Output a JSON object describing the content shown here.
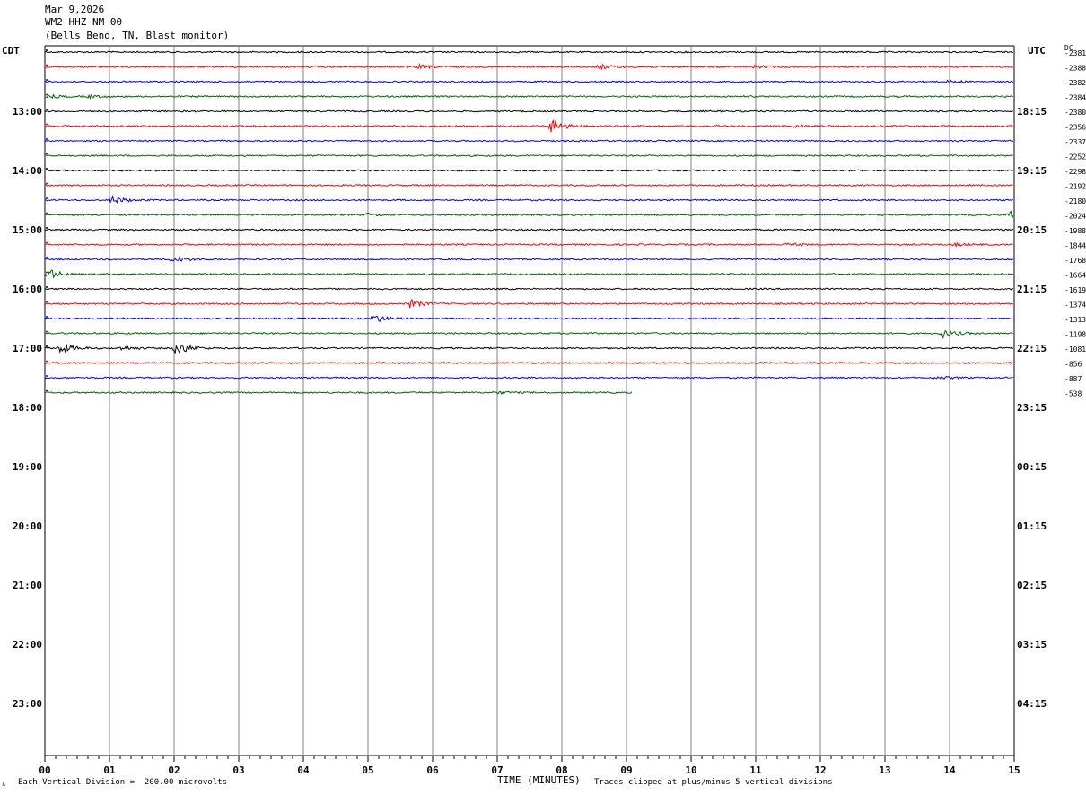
{
  "header": {
    "date": "Mar 9,2026",
    "station": "WM2 HHZ NM 00",
    "location": "(Bells Bend, TN, Blast monitor)"
  },
  "left_tz": "CDT",
  "right_tz": "UTC",
  "dc_label": "DC",
  "footer": {
    "scale_note": "Each Vertical Division =  200.00 microvolts",
    "xlabel": "TIME (MINUTES)",
    "clip_note": "Traces clipped at plus/minus 5 vertical divisions",
    "corner_mark": "∧"
  },
  "colors": {
    "black": "#000000",
    "red": "#ff0000",
    "blue": "#0000ff",
    "green": "#006400",
    "grid": "#808080"
  },
  "chart_data": {
    "type": "line",
    "title": "WM2 HHZ NM 00 (Bells Bend, TN, Blast monitor)",
    "xlabel": "TIME (MINUTES)",
    "x_ticks": [
      "00",
      "01",
      "02",
      "03",
      "04",
      "05",
      "06",
      "07",
      "08",
      "09",
      "10",
      "11",
      "12",
      "13",
      "14",
      "15"
    ],
    "xlim": [
      0,
      15
    ],
    "row_minutes": 15,
    "left_time_labels": [
      "13:00",
      "14:00",
      "15:00",
      "16:00",
      "17:00",
      "18:00",
      "19:00",
      "20:00",
      "21:00",
      "22:00",
      "23:00"
    ],
    "right_time_labels": [
      "18:15",
      "19:15",
      "20:15",
      "21:15",
      "22:15",
      "23:15",
      "00:15",
      "01:15",
      "02:15",
      "03:15",
      "04:15"
    ],
    "trace_color_cycle": [
      "black",
      "red",
      "blue",
      "green"
    ],
    "traces": [
      {
        "dc": "-2381",
        "color": "black",
        "events": []
      },
      {
        "dc": "-2388",
        "color": "red",
        "events": [
          {
            "minute": 5.8,
            "amp": 1.2
          },
          {
            "minute": 8.6,
            "amp": 1.5
          },
          {
            "minute": 11.0,
            "amp": 0.8
          }
        ]
      },
      {
        "dc": "-2382",
        "color": "blue",
        "events": [
          {
            "minute": 14.0,
            "amp": 0.8
          }
        ]
      },
      {
        "dc": "-2384",
        "color": "green",
        "events": [
          {
            "minute": 0.1,
            "amp": 0.8
          },
          {
            "minute": 0.7,
            "amp": 0.8
          }
        ]
      },
      {
        "dc": "-2380",
        "color": "black",
        "events": []
      },
      {
        "dc": "-2356",
        "color": "red",
        "events": [
          {
            "minute": 7.85,
            "amp": 4.5
          },
          {
            "minute": 11.6,
            "amp": 0.8
          }
        ]
      },
      {
        "dc": "-2337",
        "color": "blue",
        "events": []
      },
      {
        "dc": "-2252",
        "color": "green",
        "events": []
      },
      {
        "dc": "-2298",
        "color": "black",
        "events": []
      },
      {
        "dc": "-2192",
        "color": "red",
        "events": []
      },
      {
        "dc": "-2180",
        "color": "blue",
        "events": [
          {
            "minute": 1.05,
            "amp": 2.5
          }
        ]
      },
      {
        "dc": "-2024",
        "color": "green",
        "events": [
          {
            "minute": 5.0,
            "amp": 0.8
          },
          {
            "minute": 14.95,
            "amp": 3.0
          }
        ]
      },
      {
        "dc": "-1988",
        "color": "black",
        "events": []
      },
      {
        "dc": "-1844",
        "color": "red",
        "events": [
          {
            "minute": 11.5,
            "amp": 0.8
          },
          {
            "minute": 14.1,
            "amp": 0.8
          }
        ]
      },
      {
        "dc": "-1768",
        "color": "blue",
        "events": [
          {
            "minute": 2.0,
            "amp": 2.0
          }
        ]
      },
      {
        "dc": "-1664",
        "color": "green",
        "events": [
          {
            "minute": 0.05,
            "amp": 3.5
          }
        ]
      },
      {
        "dc": "-1619",
        "color": "black",
        "events": []
      },
      {
        "dc": "-1374",
        "color": "red",
        "events": [
          {
            "minute": 5.65,
            "amp": 2.5
          }
        ]
      },
      {
        "dc": "-1313",
        "color": "blue",
        "events": [
          {
            "minute": 5.1,
            "amp": 2.5
          }
        ]
      },
      {
        "dc": "-1198",
        "color": "green",
        "events": [
          {
            "minute": 13.9,
            "amp": 2.5
          }
        ]
      },
      {
        "dc": "-1081",
        "color": "black",
        "events": [
          {
            "minute": 0.25,
            "amp": 3.5
          },
          {
            "minute": 2.05,
            "amp": 4.5
          },
          {
            "minute": 1.2,
            "amp": 1.2
          }
        ]
      },
      {
        "dc": "-856",
        "color": "red",
        "events": []
      },
      {
        "dc": "-887",
        "color": "blue",
        "events": [
          {
            "minute": 13.8,
            "amp": 1.0
          }
        ]
      },
      {
        "dc": "-538",
        "color": "green",
        "end_minute": 9.1,
        "events": [
          {
            "minute": 7.0,
            "amp": 0.8
          }
        ]
      }
    ]
  }
}
